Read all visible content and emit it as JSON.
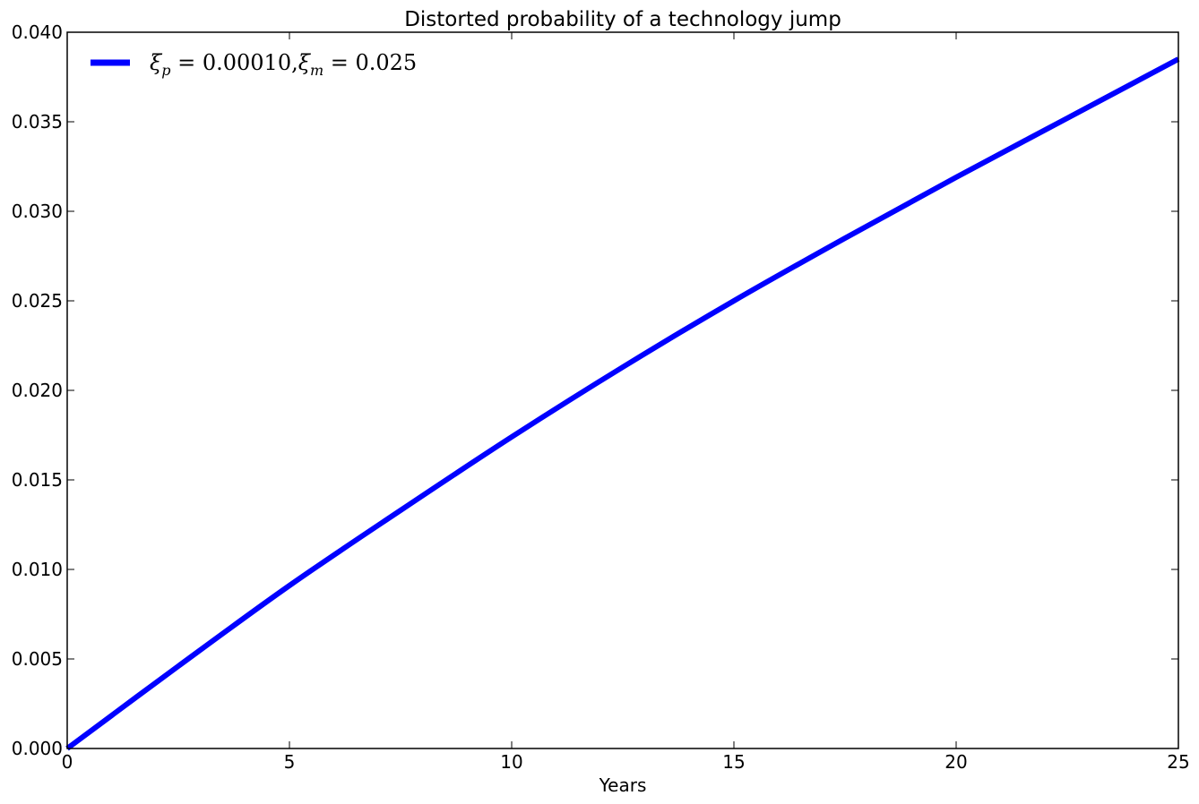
{
  "chart_data": {
    "type": "line",
    "title": "Distorted probability of a technology jump",
    "xlabel": "Years",
    "ylabel": "",
    "xlim": [
      0,
      25
    ],
    "ylim": [
      0,
      0.04
    ],
    "x_ticks": [
      "0",
      "5",
      "10",
      "15",
      "20",
      "25"
    ],
    "y_ticks": [
      "0.000",
      "0.005",
      "0.010",
      "0.015",
      "0.020",
      "0.025",
      "0.030",
      "0.035",
      "0.040"
    ],
    "grid": false,
    "legend_position": "top-left",
    "series": [
      {
        "name": "ξp = 0.00010, ξm = 0.025",
        "color": "#0000ff",
        "x": [
          0,
          2.5,
          5,
          7.5,
          10,
          12.5,
          15,
          17.5,
          20,
          22.5,
          25
        ],
        "y": [
          0,
          0.0046,
          0.0091,
          0.0133,
          0.0174,
          0.0213,
          0.025,
          0.0285,
          0.0319,
          0.0352,
          0.0385
        ]
      }
    ]
  },
  "legend": {
    "xi_symbol": "ξ",
    "sub_p": "p",
    "sub_m": "m",
    "eq_p": " = 0.00010,",
    "eq_m": " = 0.025"
  }
}
